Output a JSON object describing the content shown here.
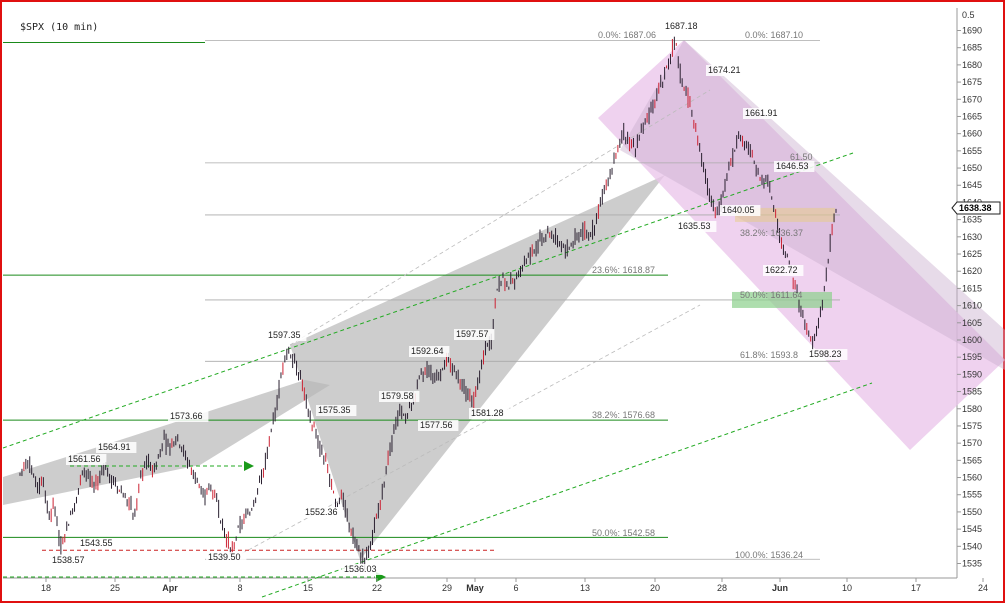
{
  "chart_title": "$SPX (10 min)",
  "colors": {
    "frame": "#e01010",
    "candle": "#2a2030",
    "candle_accent": "#cc2233",
    "fib_line": "#aaaaaa",
    "fib_text": "#777777",
    "green_line": "#1a8a1a",
    "green_dashed": "#22aa22",
    "red_dashed": "#cc2222",
    "wedge_fill": "#b8b8b8",
    "channel_fill": "#e9c3ea",
    "price_tag_bg": "#ffffff"
  },
  "chart_data": {
    "type": "candlestick",
    "title": "$SPX (10 min)",
    "ylim": [
      1530,
      1693
    ],
    "y_ticks": [
      1535,
      1540,
      1545,
      1550,
      1555,
      1560,
      1565,
      1570,
      1575,
      1580,
      1585,
      1590,
      1595,
      1600,
      1605,
      1610,
      1615,
      1620,
      1625,
      1630,
      1635,
      1640,
      1645,
      1650,
      1655,
      1660,
      1665,
      1670,
      1675,
      1680,
      1685,
      1690
    ],
    "y_top_label": "0.5",
    "last_price": "1638.38",
    "x_ticks": [
      "18",
      "25",
      "Apr",
      "8",
      "15",
      "22",
      "29",
      "May",
      "6",
      "13",
      "20",
      "28",
      "Jun",
      "10",
      "17",
      "24"
    ],
    "bold_x_ticks": [
      "Apr",
      "May",
      "Jun"
    ],
    "price_labels": [
      {
        "text": "1561.56",
        "date": "Mar 18",
        "price": 1561.56
      },
      {
        "text": "1564.91",
        "date": "Mar 22",
        "price": 1564.91
      },
      {
        "text": "1543.55",
        "date": "Mar 21",
        "price": 1543.55
      },
      {
        "text": "1538.57",
        "date": "Mar 20",
        "price": 1538.57
      },
      {
        "text": "1573.66",
        "date": "Apr 2",
        "price": 1573.66
      },
      {
        "text": "1539.50",
        "date": "Apr 5",
        "price": 1539.5
      },
      {
        "text": "1597.35",
        "date": "Apr 11",
        "price": 1597.35
      },
      {
        "text": "1575.35",
        "date": "Apr 15",
        "price": 1575.35
      },
      {
        "text": "1552.36",
        "date": "Apr 16",
        "price": 1552.36
      },
      {
        "text": "1536.03",
        "date": "Apr 18",
        "price": 1536.03
      },
      {
        "text": "1579.58",
        "date": "Apr 23",
        "price": 1579.58
      },
      {
        "text": "1577.56",
        "date": "Apr 25",
        "price": 1577.56
      },
      {
        "text": "1592.64",
        "date": "Apr 26",
        "price": 1592.64
      },
      {
        "text": "1597.57",
        "date": "Apr 30",
        "price": 1597.57
      },
      {
        "text": "1581.28",
        "date": "Apr 30",
        "price": 1581.28
      },
      {
        "text": "1687.18",
        "date": "May 22",
        "price": 1687.18
      },
      {
        "text": "1674.21",
        "date": "May 24",
        "price": 1674.21
      },
      {
        "text": "1661.91",
        "date": "May 29",
        "price": 1661.91
      },
      {
        "text": "1646.53",
        "date": "May 31",
        "price": 1646.53
      },
      {
        "text": "1640.05",
        "date": "May 28",
        "price": 1640.05
      },
      {
        "text": "1635.53",
        "date": "May 24",
        "price": 1635.53
      },
      {
        "text": "1622.72",
        "date": "Jun 3",
        "price": 1622.72
      },
      {
        "text": "1598.23",
        "date": "Jun 6",
        "price": 1598.23
      }
    ],
    "fib_levels_left": [
      {
        "text": "0.0%: 1687.06",
        "price": 1687.06
      },
      {
        "text": "23.6%: 1618.87",
        "price": 1618.87
      },
      {
        "text": "38.2%: 1576.68",
        "price": 1576.68
      },
      {
        "text": "50.0%: 1542.58",
        "price": 1542.58
      }
    ],
    "fib_levels_right": [
      {
        "text": "0.0%: 1687.10",
        "price": 1687.1
      },
      {
        "text": "61.50",
        "price": 1651.5
      },
      {
        "text": "38.2%: 1636.37",
        "price": 1636.37
      },
      {
        "text": "50.0%: 1611.64",
        "price": 1611.64
      },
      {
        "text": "61.8%: 1593.8",
        "price": 1593.8
      },
      {
        "text": "100.0%: 1536.24",
        "price": 1536.24
      }
    ],
    "ohlc_path": [
      1561,
      1565,
      1562,
      1557,
      1560,
      1548,
      1552,
      1540,
      1545,
      1550,
      1555,
      1562,
      1560,
      1557,
      1560,
      1564,
      1559,
      1557,
      1555,
      1553,
      1549,
      1560,
      1565,
      1562,
      1565,
      1571,
      1568,
      1572,
      1570,
      1565,
      1562,
      1558,
      1553,
      1558,
      1555,
      1548,
      1542,
      1539,
      1545,
      1548,
      1550,
      1555,
      1560,
      1567,
      1575,
      1585,
      1595,
      1597,
      1593,
      1588,
      1580,
      1575,
      1570,
      1565,
      1560,
      1552,
      1555,
      1548,
      1543,
      1538,
      1536,
      1540,
      1548,
      1556,
      1565,
      1572,
      1579,
      1577,
      1580,
      1585,
      1590,
      1592,
      1588,
      1590,
      1595,
      1592,
      1590,
      1587,
      1584,
      1582,
      1590,
      1597,
      1600,
      1615,
      1618,
      1616,
      1617,
      1620,
      1623,
      1625,
      1628,
      1630,
      1632,
      1630,
      1628,
      1626,
      1628,
      1630,
      1632,
      1631,
      1633,
      1640,
      1645,
      1650,
      1655,
      1660,
      1658,
      1656,
      1660,
      1664,
      1668,
      1672,
      1677,
      1682,
      1687,
      1676,
      1672,
      1665,
      1658,
      1650,
      1642,
      1636,
      1640,
      1648,
      1653,
      1660,
      1658,
      1655,
      1650,
      1646,
      1648,
      1640,
      1632,
      1625,
      1622,
      1615,
      1608,
      1603,
      1598,
      1605,
      1615,
      1628,
      1638
    ]
  }
}
